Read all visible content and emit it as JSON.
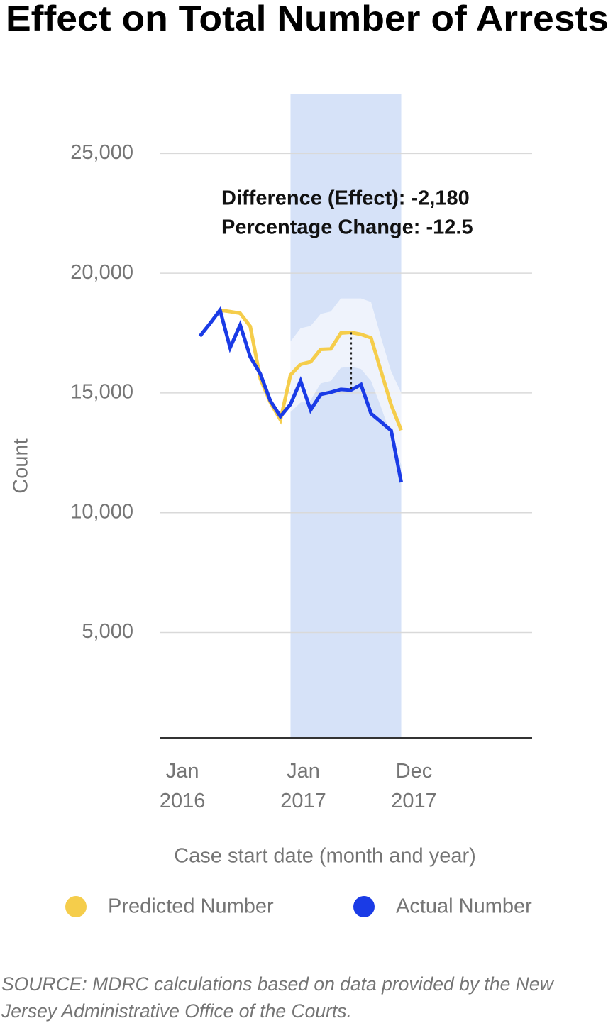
{
  "chart_data": {
    "type": "line",
    "title": "Effect on Total Number of Arrests",
    "x_label": "Case start date (month and year)",
    "y_label": "Count",
    "xlim": [
      "2015-12",
      "2019-01"
    ],
    "xticks": [
      {
        "value": "2016-01",
        "label": "Jan 2016"
      },
      {
        "value": "2017-01",
        "label": "Jan 2017"
      },
      {
        "value": "2017-12",
        "label": "Dec 2017"
      }
    ],
    "ylim": [
      600,
      27500
    ],
    "yticks": [
      {
        "value": 5000,
        "label": "5,000"
      },
      {
        "value": 10000,
        "label": "10,000"
      },
      {
        "value": 15000,
        "label": "15,000"
      },
      {
        "value": 20000,
        "label": "20,000"
      },
      {
        "value": 25000,
        "label": "25,000"
      }
    ],
    "grid": true,
    "highlight": [
      "2017-01",
      "2017-12"
    ],
    "highlight_color": "#d6e2f8",
    "series": [
      {
        "name": "Predicted Number",
        "color": "#f5cd4b",
        "x": [
          "2016-06",
          "2016-07",
          "2016-08",
          "2016-09",
          "2016-10",
          "2016-11",
          "2016-12",
          "2017-01",
          "2017-02",
          "2017-03",
          "2017-04",
          "2017-05",
          "2017-06",
          "2017-07",
          "2017-08",
          "2017-09",
          "2017-10",
          "2017-11",
          "2017-12"
        ],
        "values": [
          18460,
          18400,
          18330,
          17780,
          15600,
          14600,
          13880,
          15750,
          16200,
          16300,
          16820,
          16840,
          17500,
          17530,
          17450,
          17300,
          15900,
          14500,
          13450
        ]
      },
      {
        "name": "Actual Number",
        "color": "#1a3be6",
        "x": [
          "2016-04",
          "2016-05",
          "2016-06",
          "2016-07",
          "2016-08",
          "2016-09",
          "2016-10",
          "2016-11",
          "2016-12",
          "2017-01",
          "2017-02",
          "2017-03",
          "2017-04",
          "2017-05",
          "2017-06",
          "2017-07",
          "2017-08",
          "2017-09",
          "2017-10",
          "2017-11",
          "2017-12"
        ],
        "values": [
          17370,
          17900,
          18460,
          16890,
          17840,
          16510,
          15800,
          14670,
          14020,
          14530,
          15500,
          14290,
          14940,
          15030,
          15150,
          15120,
          15350,
          14140,
          13790,
          13430,
          11270
        ]
      }
    ],
    "band": {
      "x": [
        "2017-01",
        "2017-02",
        "2017-03",
        "2017-04",
        "2017-05",
        "2017-06",
        "2017-07",
        "2017-08",
        "2017-09",
        "2017-10",
        "2017-11",
        "2017-12"
      ],
      "upper": [
        17150,
        17700,
        17800,
        18300,
        18400,
        18950,
        18950,
        18950,
        18800,
        17300,
        15900,
        15000
      ],
      "lower": [
        14200,
        14600,
        14700,
        15400,
        15500,
        16050,
        16100,
        16000,
        15500,
        14400,
        13200,
        12000
      ]
    },
    "annotation": {
      "lines": [
        "Difference (Effect): -2,180",
        "Percentage Change: -12.5"
      ],
      "x": "2017-07"
    },
    "source": "SOURCE: MDRC calculations based on data provided by the New Jersey Administrative Office of the Courts."
  }
}
